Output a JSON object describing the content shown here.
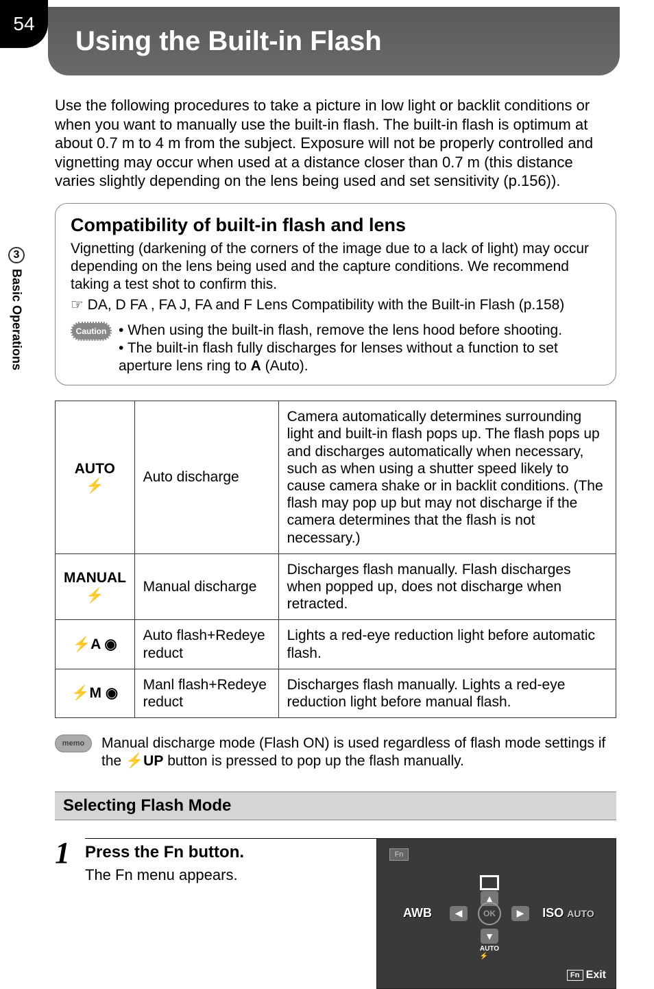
{
  "page_number": "54",
  "sidebar": {
    "chapter_number": "3",
    "chapter_label": "Basic Operations"
  },
  "title": "Using the Built-in Flash",
  "intro": "Use the following procedures to take a picture in low light or backlit conditions or when you want to manually use the built-in flash. The built-in flash is optimum at about 0.7 m to 4 m from the subject. Exposure will not be properly controlled and vignetting may occur when used at a distance closer than 0.7 m (this distance varies slightly depending on the lens being used and set sensitivity (p.156)).",
  "compat": {
    "title": "Compatibility of built-in flash and lens",
    "body": "Vignetting (darkening of the corners of the image due to a lack of light) may occur depending on the lens being used and the capture conditions. We recommend taking a test shot to confirm this.",
    "link": "☞ DA, D FA , FA J, FA and F Lens Compatibility with the Built-in Flash (p.158)",
    "caution_badge": "Caution",
    "caution1": "When using the built-in flash, remove the lens hood before shooting.",
    "caution2_pre": "The built-in flash fully discharges for lenses without a function to set aperture lens ring to ",
    "caution2_bold": "A",
    "caution2_post": " (Auto)."
  },
  "modes": [
    {
      "icon": "AUTO\n⚡",
      "name": "Auto discharge",
      "desc": "Camera automatically determines surrounding light and built-in flash pops up. The flash pops up and discharges automatically when necessary, such as when using a shutter speed likely to cause camera shake or in backlit conditions. (The flash may pop up but may not discharge if the camera determines that the flash is not necessary.)"
    },
    {
      "icon": "MANUAL\n⚡",
      "name": "Manual discharge",
      "desc": "Discharges flash manually. Flash discharges when popped up, does not discharge when retracted."
    },
    {
      "icon": "⚡A\n◉",
      "name": "Auto flash+Redeye reduct",
      "desc": "Lights a red-eye reduction light before automatic flash."
    },
    {
      "icon": "⚡M\n◉",
      "name": "Manl flash+Redeye reduct",
      "desc": "Discharges flash manually. Lights a red-eye reduction light before manual flash."
    }
  ],
  "memo": {
    "badge": "memo",
    "text_pre": "Manual discharge mode (Flash ON) is used regardless of flash mode settings if the ",
    "text_bold": "⚡UP",
    "text_post": " button is pressed to pop up the flash manually."
  },
  "section_header": "Selecting Flash Mode",
  "step1": {
    "number": "1",
    "title_pre": "Press the ",
    "title_fn": "Fn",
    "title_post": " button.",
    "desc": "The Fn menu appears."
  },
  "lcd": {
    "fn": "Fn",
    "awb": "AWB",
    "ok": "OK",
    "iso": "ISO",
    "iso_auto": "AUTO",
    "flash_auto": "AUTO",
    "exit": "Exit"
  }
}
